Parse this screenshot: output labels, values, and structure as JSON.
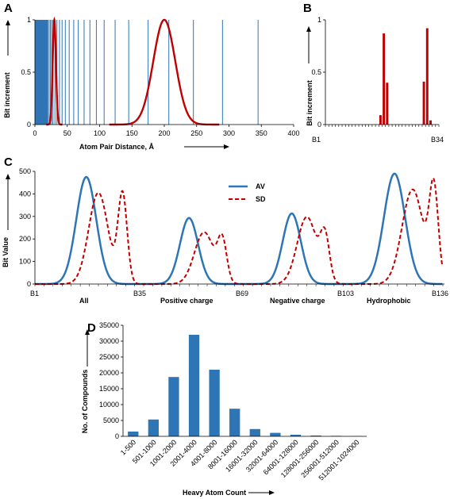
{
  "colors": {
    "blue": "#2e75b6",
    "red": "#c00000",
    "black": "#000000"
  },
  "chart_data": [
    {
      "id": "A",
      "type": "line",
      "panel_label": "A",
      "xlabel": "Atom Pair Distance, Å",
      "ylabel": "Bit increment",
      "xlim": [
        0,
        400
      ],
      "ylim": [
        0,
        1
      ],
      "xticks": [
        "0",
        "50",
        "100",
        "150",
        "200",
        "250",
        "300",
        "350",
        "400"
      ],
      "yticks": [
        "0",
        "0.5",
        "1"
      ],
      "bin_edges": [
        1,
        2,
        3,
        4,
        5,
        6,
        7,
        8,
        9,
        10,
        11,
        12,
        13,
        14,
        15,
        16,
        17,
        18,
        19,
        20,
        22,
        24,
        26,
        28,
        31,
        34,
        38,
        42,
        47,
        53,
        60,
        67,
        76,
        85,
        95,
        107,
        124,
        145,
        175,
        207,
        245,
        290,
        345
      ],
      "series": [
        {
          "mu": 30,
          "sigma": 2.5,
          "amplitude": 1
        },
        {
          "mu": 200,
          "sigma": 17,
          "amplitude": 1
        }
      ]
    },
    {
      "id": "B",
      "type": "bar",
      "panel_label": "B",
      "ylabel": "Bit increment",
      "ylim": [
        0,
        1
      ],
      "yticks": [
        "0",
        "0.5",
        "1"
      ],
      "xtick_labels": [
        "B1",
        "B34"
      ],
      "bins": 34,
      "values": [
        0,
        0,
        0,
        0,
        0,
        0,
        0,
        0,
        0,
        0,
        0,
        0,
        0,
        0,
        0,
        0,
        0.09,
        0.87,
        0.4,
        0,
        0,
        0,
        0,
        0,
        0,
        0,
        0,
        0,
        0,
        0.41,
        0.92,
        0.04,
        0,
        0
      ]
    },
    {
      "id": "C",
      "type": "line",
      "panel_label": "C",
      "ylabel": "Bit Value",
      "ylim": [
        0,
        500
      ],
      "yticks": [
        "0",
        "100",
        "200",
        "300",
        "400",
        "500"
      ],
      "xtick_labels": [
        "B1",
        "B35",
        "B69",
        "B103",
        "B136"
      ],
      "xlim": [
        1,
        136
      ],
      "groups": [
        "All",
        "Positive charge",
        "Negative charge",
        "Hydrophobic"
      ],
      "legend": [
        "AV",
        "SD"
      ],
      "av_peaks": [
        {
          "mu": 18,
          "sigma": 3.3,
          "height": 475
        },
        {
          "mu": 52,
          "sigma": 3.0,
          "height": 293
        },
        {
          "mu": 86,
          "sigma": 3.0,
          "height": 313
        },
        {
          "mu": 120,
          "sigma": 3.5,
          "height": 490
        }
      ],
      "sd_peaks": [
        {
          "mu": 22,
          "sigma": 3.2,
          "height": 405
        },
        {
          "mu": 30,
          "sigma": 1.5,
          "height": 395
        },
        {
          "mu": 57,
          "sigma": 3.2,
          "height": 230
        },
        {
          "mu": 63,
          "sigma": 1.5,
          "height": 180
        },
        {
          "mu": 91,
          "sigma": 3.2,
          "height": 298
        },
        {
          "mu": 97,
          "sigma": 1.5,
          "height": 195
        },
        {
          "mu": 126,
          "sigma": 3.5,
          "height": 420
        },
        {
          "mu": 133,
          "sigma": 1.5,
          "height": 410
        }
      ]
    },
    {
      "id": "D",
      "type": "bar",
      "panel_label": "D",
      "xlabel": "Heavy Atom Count",
      "ylabel": "No. of Compounds",
      "ylim": [
        0,
        35000
      ],
      "yticks": [
        "0",
        "5000",
        "10000",
        "15000",
        "20000",
        "25000",
        "30000",
        "35000"
      ],
      "categories": [
        "1-500",
        "501-1000",
        "1001-2000",
        "2001-4000",
        "4001-8000",
        "8001-16000",
        "16001-32000",
        "32001-64000",
        "64001-128000",
        "128001-256000",
        "256001-512000",
        "512001-1024000"
      ],
      "values": [
        1500,
        5300,
        18700,
        32000,
        21000,
        8700,
        2300,
        1100,
        500,
        250,
        150,
        50
      ]
    }
  ]
}
